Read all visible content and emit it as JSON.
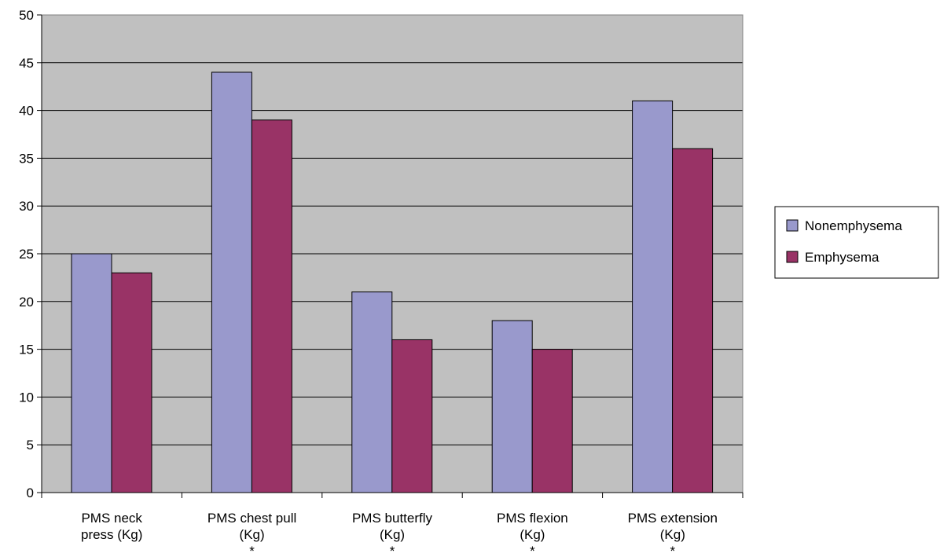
{
  "chart_data": {
    "type": "bar",
    "categories": [
      [
        "PMS neck",
        "press (Kg)"
      ],
      [
        "PMS chest pull",
        "(Kg)",
        "*"
      ],
      [
        "PMS butterfly",
        "(Kg)",
        "*"
      ],
      [
        "PMS flexion",
        "(Kg)",
        "*"
      ],
      [
        "PMS extension",
        "(Kg)",
        "*"
      ]
    ],
    "series": [
      {
        "name": "Nonemphysema",
        "color": "#9999cc",
        "values": [
          25,
          44,
          21,
          18,
          41
        ]
      },
      {
        "name": "Emphysema",
        "color": "#993366",
        "values": [
          23,
          39,
          16,
          15,
          36
        ]
      }
    ],
    "ylim": [
      0,
      50
    ],
    "yticks": [
      0,
      5,
      10,
      15,
      20,
      25,
      30,
      35,
      40,
      45,
      50
    ],
    "grid": true,
    "plot_background": "#c0c0c0",
    "legend_position": "right"
  }
}
